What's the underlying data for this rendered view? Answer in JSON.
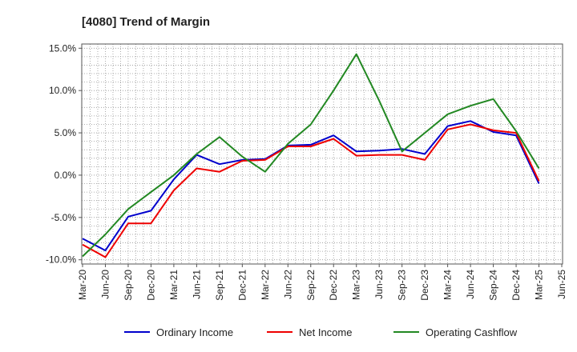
{
  "chart_data": {
    "type": "line",
    "title": "[4080]  Trend of Margin",
    "xlabel": "",
    "ylabel": "",
    "categories": [
      "Mar-20",
      "Jun-20",
      "Sep-20",
      "Dec-20",
      "Mar-21",
      "Jun-21",
      "Sep-21",
      "Dec-21",
      "Mar-22",
      "Jun-22",
      "Sep-22",
      "Dec-22",
      "Mar-23",
      "Jun-23",
      "Sep-23",
      "Dec-23",
      "Mar-24",
      "Jun-24",
      "Sep-24",
      "Dec-24",
      "Mar-25",
      "Jun-25"
    ],
    "y_ticks": [
      "15.0%",
      "10.0%",
      "5.0%",
      "0.0%",
      "-5.0%",
      "-10.0%"
    ],
    "ylim": [
      -10.5,
      15.5
    ],
    "grid": true,
    "legend_position": "bottom",
    "series": [
      {
        "name": "Ordinary Income",
        "color": "#0000cc",
        "values": [
          -7.5,
          -8.9,
          -4.9,
          -4.2,
          -0.5,
          2.4,
          1.3,
          1.8,
          1.9,
          3.5,
          3.6,
          4.7,
          2.8,
          2.9,
          3.1,
          2.5,
          5.8,
          6.4,
          5.1,
          4.7,
          -1.0,
          null
        ]
      },
      {
        "name": "Net Income",
        "color": "#ee0000",
        "values": [
          -8.2,
          -9.7,
          -5.7,
          -5.7,
          -1.8,
          0.8,
          0.4,
          1.7,
          1.8,
          3.4,
          3.4,
          4.3,
          2.3,
          2.4,
          2.4,
          1.8,
          5.4,
          6.0,
          5.3,
          5.0,
          -0.7,
          null
        ]
      },
      {
        "name": "Operating Cashflow",
        "color": "#228822",
        "values": [
          -9.6,
          -7.0,
          -4.0,
          -2.0,
          0.0,
          2.5,
          4.5,
          2.2,
          0.4,
          3.7,
          6.0,
          10.0,
          14.3,
          8.8,
          2.8,
          5.0,
          7.2,
          8.2,
          9.0,
          5.2,
          0.8,
          null
        ]
      }
    ]
  }
}
